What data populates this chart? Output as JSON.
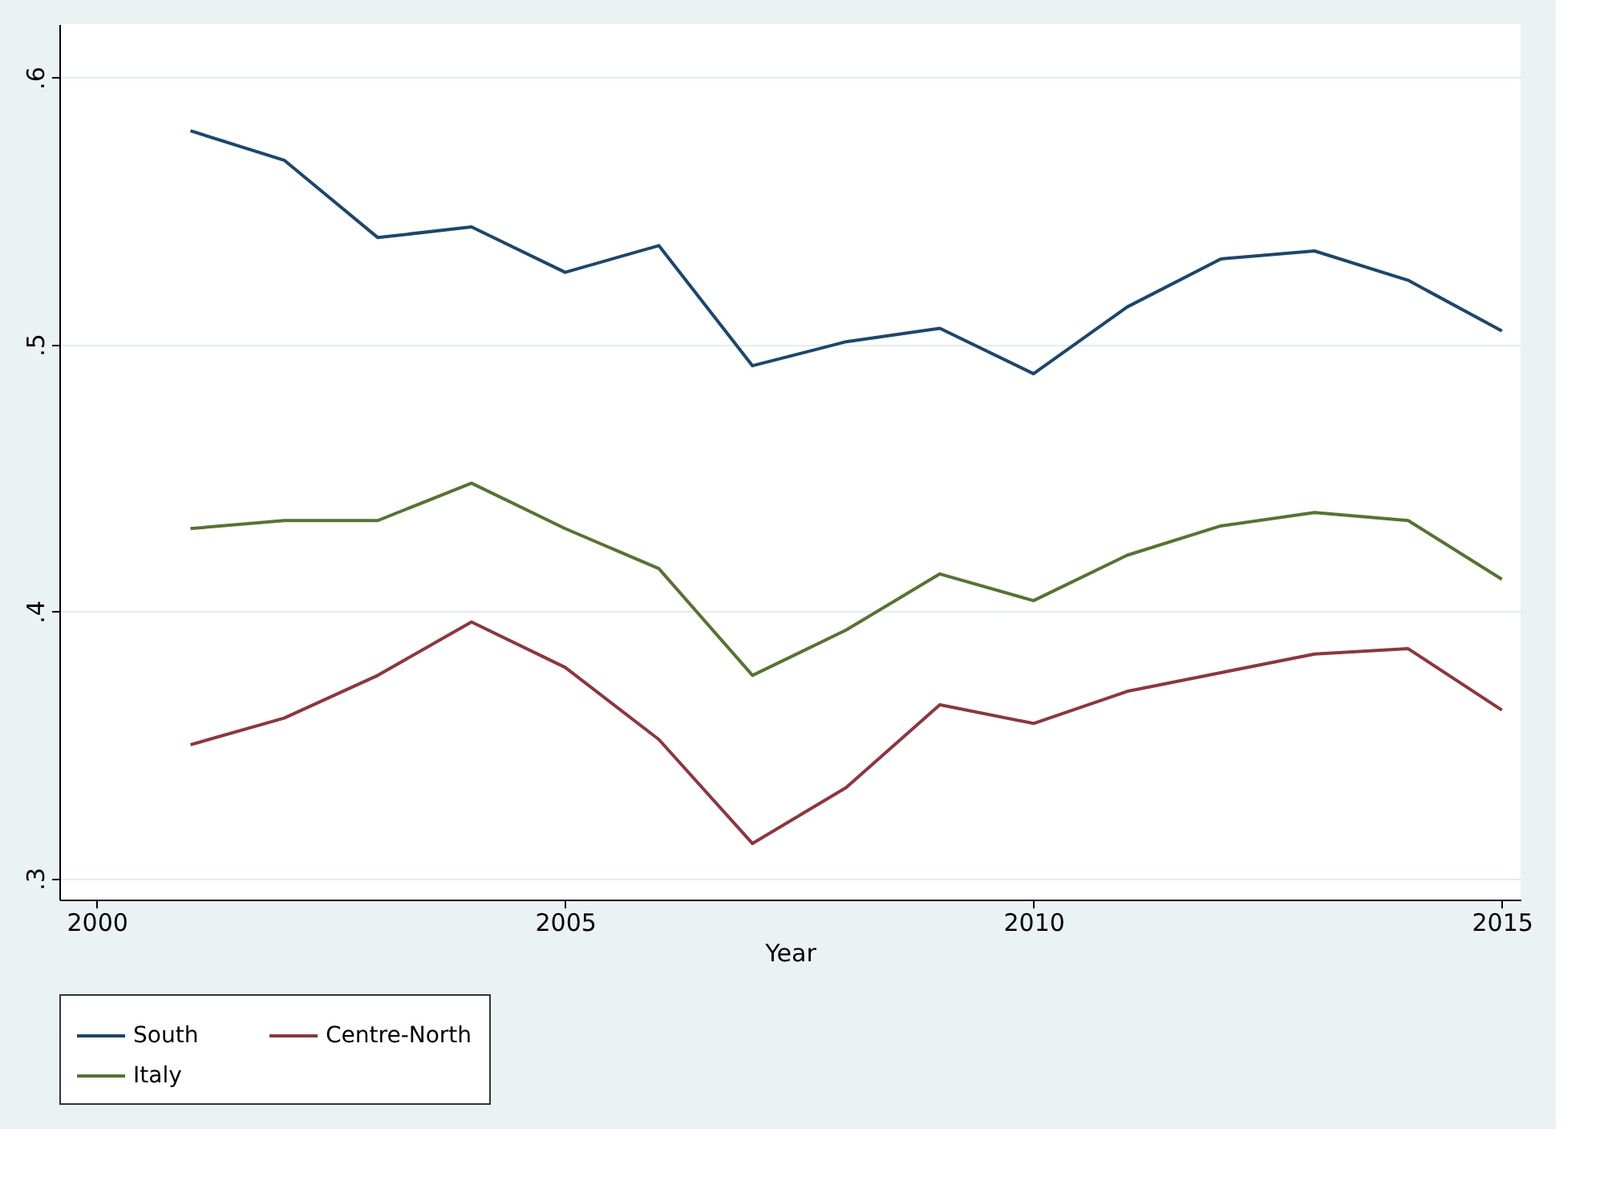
{
  "chart_data": {
    "type": "line",
    "xlabel": "Year",
    "x": [
      2001,
      2002,
      2003,
      2004,
      2005,
      2006,
      2007,
      2008,
      2009,
      2010,
      2011,
      2012,
      2013,
      2014,
      2015
    ],
    "series": [
      {
        "name": "South",
        "color": "#1a476f",
        "values": [
          0.58,
          0.569,
          0.54,
          0.544,
          0.527,
          0.537,
          0.492,
          0.501,
          0.506,
          0.489,
          0.514,
          0.532,
          0.535,
          0.524,
          0.505
        ]
      },
      {
        "name": "Centre-North",
        "color": "#90353b",
        "values": [
          0.35,
          0.36,
          0.376,
          0.396,
          0.379,
          0.352,
          0.313,
          0.334,
          0.365,
          0.358,
          0.37,
          0.377,
          0.384,
          0.386,
          0.363
        ]
      },
      {
        "name": "Italy",
        "color": "#55752f",
        "values": [
          0.431,
          0.434,
          0.434,
          0.448,
          0.431,
          0.416,
          0.376,
          0.393,
          0.414,
          0.404,
          0.421,
          0.432,
          0.437,
          0.434,
          0.412
        ]
      }
    ],
    "xlim": [
      1999.6,
      2015.2
    ],
    "xticks": [
      2000,
      2005,
      2010,
      2015
    ],
    "ylim": [
      0.292,
      0.62
    ],
    "yticks": [
      {
        "value": 0.3,
        "label": ".3"
      },
      {
        "value": 0.4,
        "label": ".4"
      },
      {
        "value": 0.5,
        "label": ".5"
      },
      {
        "value": 0.6,
        "label": ".6"
      }
    ],
    "grid": "y",
    "legend": "bottom",
    "marker": "none",
    "line_style": "solid"
  }
}
